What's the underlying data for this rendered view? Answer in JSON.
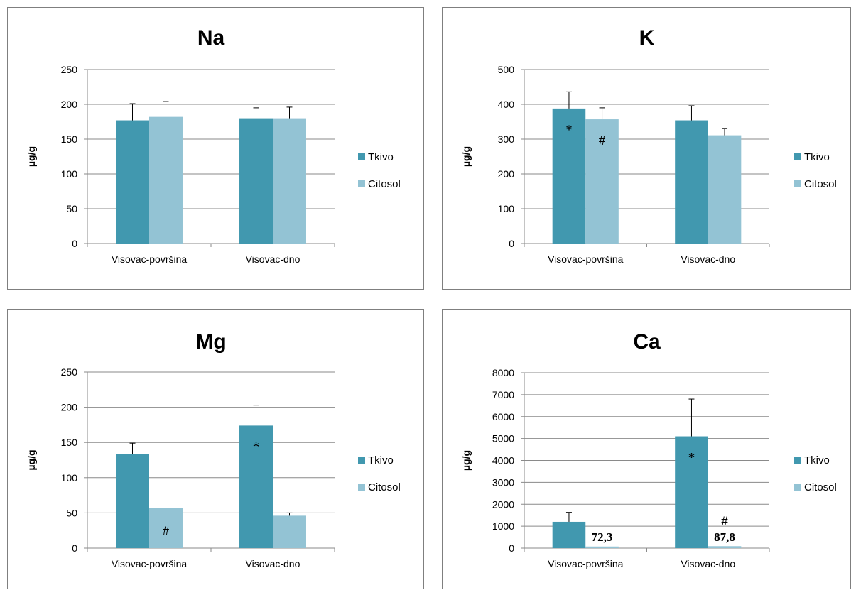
{
  "chart_data": [
    {
      "type": "bar",
      "title": "Na",
      "ylabel": "µg/g",
      "xlabel": "",
      "ylim": [
        0,
        250
      ],
      "yticks": [
        "0",
        "50",
        "100",
        "150",
        "200",
        "250"
      ],
      "categories": [
        "Visovac-površina",
        "Visovac-dno"
      ],
      "series": [
        {
          "name": "Tkivo",
          "values": [
            177,
            180
          ],
          "errors": [
            24,
            15
          ]
        },
        {
          "name": "Citosol",
          "values": [
            182,
            180
          ],
          "errors": [
            22,
            16
          ]
        }
      ],
      "annotations": [],
      "grid": true,
      "legend": "right",
      "colors": {
        "Tkivo": "#4198af",
        "Citosol": "#93c3d4"
      }
    },
    {
      "type": "bar",
      "title": "K",
      "ylabel": "µg/g",
      "xlabel": "",
      "ylim": [
        0,
        500
      ],
      "yticks": [
        "0",
        "100",
        "200",
        "300",
        "400",
        "500"
      ],
      "categories": [
        "Visovac-površina",
        "Visovac-dno"
      ],
      "series": [
        {
          "name": "Tkivo",
          "values": [
            388,
            354
          ],
          "errors": [
            48,
            42
          ]
        },
        {
          "name": "Citosol",
          "values": [
            357,
            311
          ],
          "errors": [
            33,
            20
          ]
        }
      ],
      "annotations": [
        {
          "text": "*",
          "category": 0,
          "series": 0
        },
        {
          "text": "#",
          "category": 0,
          "series": 1
        }
      ],
      "grid": true,
      "legend": "right",
      "colors": {
        "Tkivo": "#4198af",
        "Citosol": "#93c3d4"
      }
    },
    {
      "type": "bar",
      "title": "Mg",
      "ylabel": "µg/g",
      "xlabel": "",
      "ylim": [
        0,
        250
      ],
      "yticks": [
        "0",
        "50",
        "100",
        "150",
        "200",
        "250"
      ],
      "categories": [
        "Visovac-površina",
        "Visovac-dno"
      ],
      "series": [
        {
          "name": "Tkivo",
          "values": [
            134,
            174
          ],
          "errors": [
            15,
            29
          ]
        },
        {
          "name": "Citosol",
          "values": [
            57,
            46
          ],
          "errors": [
            7,
            4
          ]
        }
      ],
      "annotations": [
        {
          "text": "#",
          "category": 0,
          "series": 1
        },
        {
          "text": "*",
          "category": 1,
          "series": 0
        }
      ],
      "grid": true,
      "legend": "right",
      "colors": {
        "Tkivo": "#4198af",
        "Citosol": "#93c3d4"
      }
    },
    {
      "type": "bar",
      "title": "Ca",
      "ylabel": "µg/g",
      "xlabel": "",
      "ylim": [
        0,
        8000
      ],
      "yticks": [
        "0",
        "1000",
        "2000",
        "3000",
        "4000",
        "5000",
        "6000",
        "7000",
        "8000"
      ],
      "categories": [
        "Visovac-površina",
        "Visovac-dno"
      ],
      "series": [
        {
          "name": "Tkivo",
          "values": [
            1200,
            5100
          ],
          "errors": [
            430,
            1700
          ]
        },
        {
          "name": "Citosol",
          "values": [
            72.3,
            87.8
          ],
          "errors": [
            0,
            0
          ]
        }
      ],
      "annotations": [
        {
          "text": "*",
          "category": 1,
          "series": 0
        },
        {
          "text": "#",
          "category": 1,
          "series": 1
        },
        {
          "text": "72,3",
          "category": 0,
          "series": 1,
          "bold": true
        },
        {
          "text": "87,8",
          "category": 1,
          "series": 1,
          "bold": true
        }
      ],
      "grid": true,
      "legend": "right",
      "colors": {
        "Tkivo": "#4198af",
        "Citosol": "#93c3d4"
      }
    }
  ]
}
